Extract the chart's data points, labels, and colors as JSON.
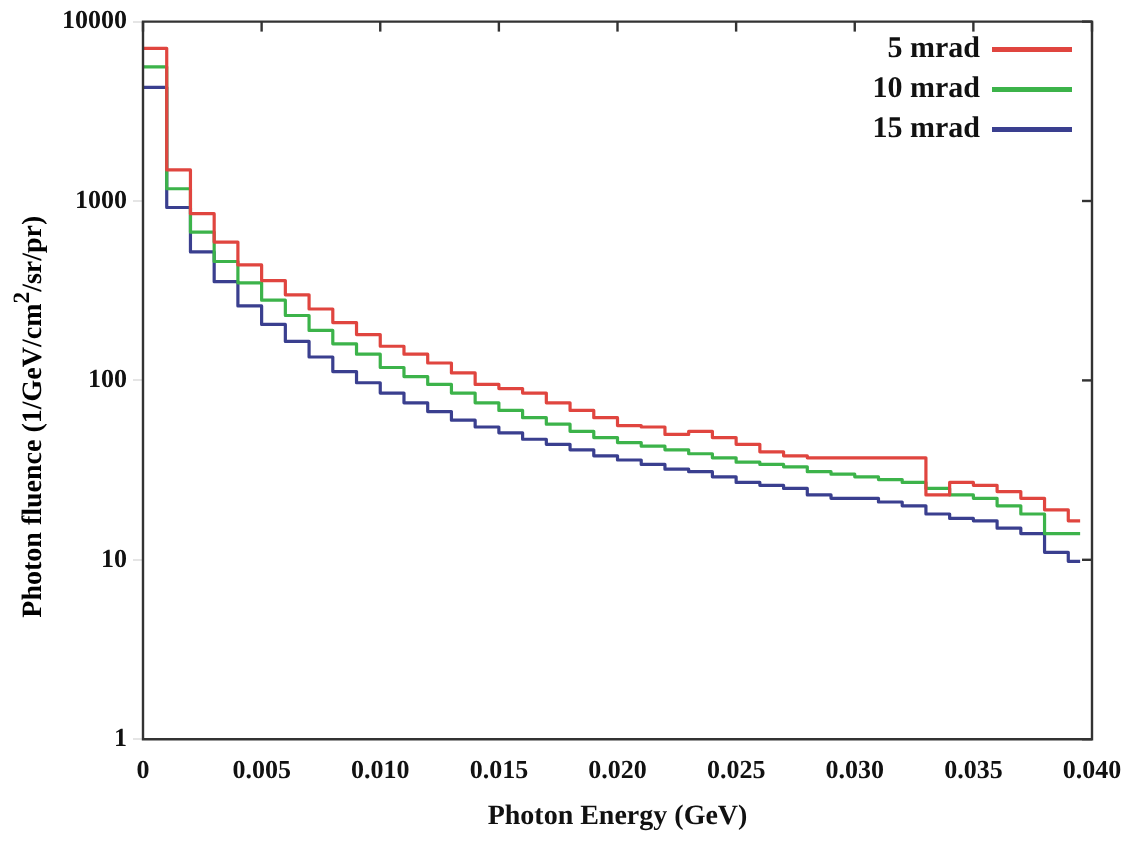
{
  "chart_data": {
    "type": "histogram",
    "xlabel": "Photon Energy (GeV)",
    "ylabel": "Photon fluence (1/GeV/cm$^{2}$/sr/pr)",
    "bins": [
      0,
      0.001,
      0.002,
      0.003,
      0.004,
      0.005,
      0.006,
      0.007,
      0.008,
      0.009,
      0.01,
      0.011,
      0.012,
      0.013,
      0.014,
      0.015,
      0.016,
      0.017,
      0.018,
      0.019,
      0.02,
      0.021,
      0.022,
      0.023,
      0.024,
      0.025,
      0.026,
      0.027,
      0.028,
      0.029,
      0.03,
      0.031,
      0.032,
      0.033,
      0.034,
      0.035,
      0.036,
      0.037,
      0.038,
      0.039,
      0.0395
    ],
    "series": [
      {
        "name": "5 mrad",
        "color": "#e0453f",
        "values": [
          7100,
          1490,
          850,
          590,
          440,
          360,
          300,
          250,
          210,
          180,
          155,
          140,
          125,
          110,
          95,
          90,
          85,
          75,
          68,
          62,
          56,
          55,
          50,
          52,
          48,
          44,
          40,
          38,
          37,
          37,
          37,
          37,
          37,
          23,
          27,
          26,
          24,
          22,
          19,
          16.5
        ]
      },
      {
        "name": "10 mrad",
        "color": "#3cb34a",
        "values": [
          5600,
          1170,
          670,
          460,
          350,
          280,
          230,
          190,
          160,
          140,
          118,
          105,
          95,
          85,
          75,
          68,
          62,
          57,
          52,
          48,
          45,
          43,
          41,
          39,
          37,
          35,
          34,
          33,
          31,
          30,
          29,
          28,
          27,
          25,
          23,
          22,
          20,
          18,
          14,
          14
        ]
      },
      {
        "name": "15 mrad",
        "color": "#3a3f8f",
        "values": [
          4300,
          920,
          520,
          355,
          260,
          205,
          165,
          135,
          112,
          97,
          85,
          75,
          67,
          60,
          55,
          51,
          47,
          44,
          41,
          38,
          36,
          34,
          32,
          31,
          29,
          27,
          26,
          25,
          23,
          22,
          22,
          21,
          20,
          18,
          17,
          16.5,
          15,
          14,
          11,
          9.8
        ]
      }
    ],
    "xlim": [
      0,
      0.04
    ],
    "xticks": [
      0,
      0.005,
      {
        "value": 0.01,
        "label": "0.010"
      },
      0.015,
      {
        "value": 0.02,
        "label": "0.020"
      },
      0.025,
      {
        "value": 0.03,
        "label": "0.030"
      },
      0.035,
      {
        "value": 0.04,
        "label": "0.040"
      }
    ],
    "ylim": [
      1,
      10000
    ],
    "yticks": [
      1,
      10,
      100,
      1000,
      10000
    ],
    "log": true,
    "legend": "top right"
  }
}
